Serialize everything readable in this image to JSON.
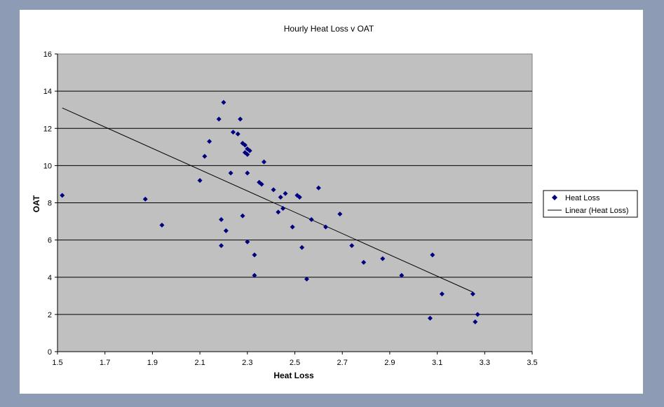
{
  "chart_data": {
    "type": "scatter",
    "title": "Hourly Heat Loss v OAT",
    "xlabel": "Heat Loss",
    "ylabel": "OAT",
    "xlim": [
      1.5,
      3.5
    ],
    "ylim": [
      0,
      16
    ],
    "x_ticks": [
      "1.5",
      "1.7",
      "1.9",
      "2.1",
      "2.3",
      "2.5",
      "2.7",
      "2.9",
      "3.1",
      "3.3",
      "3.5"
    ],
    "y_ticks": [
      "0",
      "2",
      "4",
      "6",
      "8",
      "10",
      "12",
      "14",
      "16"
    ],
    "grid": "horizontal",
    "plot_background": "#c0c0c0",
    "legend_position": "right",
    "series": [
      {
        "name": "Heat Loss",
        "marker": "diamond",
        "color": "#000080",
        "points": [
          [
            1.52,
            8.4
          ],
          [
            1.87,
            8.2
          ],
          [
            1.94,
            6.8
          ],
          [
            2.1,
            9.2
          ],
          [
            2.12,
            10.5
          ],
          [
            2.14,
            11.3
          ],
          [
            2.18,
            12.5
          ],
          [
            2.19,
            5.7
          ],
          [
            2.19,
            7.1
          ],
          [
            2.2,
            13.4
          ],
          [
            2.21,
            6.5
          ],
          [
            2.23,
            9.6
          ],
          [
            2.24,
            11.8
          ],
          [
            2.26,
            11.7
          ],
          [
            2.27,
            12.5
          ],
          [
            2.28,
            11.2
          ],
          [
            2.28,
            7.3
          ],
          [
            2.29,
            10.7
          ],
          [
            2.29,
            11.1
          ],
          [
            2.3,
            10.6
          ],
          [
            2.3,
            10.9
          ],
          [
            2.31,
            10.8
          ],
          [
            2.3,
            9.6
          ],
          [
            2.3,
            5.9
          ],
          [
            2.33,
            5.2
          ],
          [
            2.33,
            4.1
          ],
          [
            2.35,
            9.1
          ],
          [
            2.36,
            9.0
          ],
          [
            2.37,
            10.2
          ],
          [
            2.41,
            8.7
          ],
          [
            2.43,
            7.5
          ],
          [
            2.44,
            8.3
          ],
          [
            2.45,
            7.7
          ],
          [
            2.46,
            8.5
          ],
          [
            2.49,
            6.7
          ],
          [
            2.51,
            8.4
          ],
          [
            2.52,
            8.3
          ],
          [
            2.53,
            5.6
          ],
          [
            2.55,
            3.9
          ],
          [
            2.57,
            7.1
          ],
          [
            2.6,
            8.8
          ],
          [
            2.63,
            6.7
          ],
          [
            2.69,
            7.4
          ],
          [
            2.74,
            5.7
          ],
          [
            2.79,
            4.8
          ],
          [
            2.87,
            5.0
          ],
          [
            2.95,
            4.1
          ],
          [
            3.07,
            1.8
          ],
          [
            3.08,
            5.2
          ],
          [
            3.12,
            3.1
          ],
          [
            3.25,
            3.1
          ],
          [
            3.26,
            1.6
          ],
          [
            3.27,
            2.0
          ]
        ]
      },
      {
        "name": "Linear (Heat Loss)",
        "type": "line",
        "color": "#000000",
        "points": [
          [
            1.52,
            13.1
          ],
          [
            3.25,
            3.2
          ]
        ]
      }
    ]
  }
}
